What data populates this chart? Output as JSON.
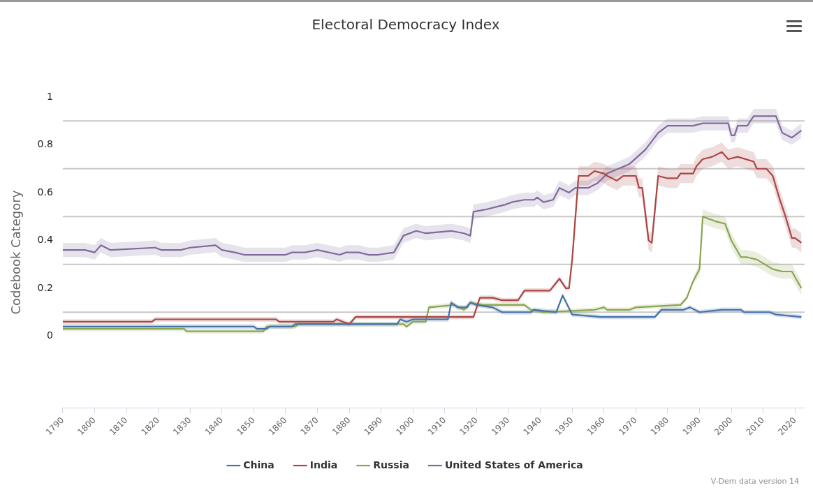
{
  "chart_data": {
    "type": "line",
    "title": "Electoral Democracy Index",
    "ylabel": "Codebook Category",
    "xlim": [
      1790,
      2023
    ],
    "xticks": [
      1790,
      1800,
      1810,
      1820,
      1830,
      1840,
      1850,
      1860,
      1870,
      1880,
      1890,
      1900,
      1910,
      1920,
      1930,
      1940,
      1950,
      1960,
      1970,
      1980,
      1990,
      2000,
      2010,
      2020
    ],
    "ylim": [
      -0.3,
      1
    ],
    "yticks": [
      0,
      0.2,
      0.4,
      0.6,
      0.8,
      1
    ],
    "grid": false,
    "legend": "bottom",
    "marker": "none",
    "line_style": "solid",
    "ref_lines": [
      {
        "axis": "y",
        "value": 0.1,
        "color": "#c8c8c8"
      },
      {
        "axis": "y",
        "value": 0.3,
        "color": "#c8c8c8"
      },
      {
        "axis": "y",
        "value": 0.5,
        "color": "#c8c8c8"
      },
      {
        "axis": "y",
        "value": 0.7,
        "color": "#c8c8c8"
      },
      {
        "axis": "y",
        "value": 0.9,
        "color": "#c8c8c8"
      }
    ],
    "annotations": [
      "V-Dem data version 14"
    ],
    "series": [
      {
        "name": "China",
        "color": "#4572a7",
        "x": [
          1790,
          1850,
          1851,
          1854,
          1855,
          1862,
          1863,
          1895,
          1896,
          1898,
          1900,
          1905,
          1911,
          1912,
          1914,
          1917,
          1918,
          1920,
          1925,
          1928,
          1937,
          1938,
          1945,
          1947,
          1950,
          1959,
          1970,
          1976,
          1978,
          1985,
          1987,
          1990,
          1997,
          2003,
          2004,
          2012,
          2014,
          2022
        ],
        "values": [
          0.04,
          0.04,
          0.03,
          0.03,
          0.04,
          0.04,
          0.05,
          0.05,
          0.07,
          0.06,
          0.07,
          0.07,
          0.07,
          0.14,
          0.12,
          0.12,
          0.14,
          0.13,
          0.12,
          0.1,
          0.1,
          0.11,
          0.1,
          0.17,
          0.09,
          0.08,
          0.08,
          0.08,
          0.11,
          0.11,
          0.12,
          0.1,
          0.11,
          0.11,
          0.1,
          0.1,
          0.09,
          0.08
        ],
        "lower": [
          0.03,
          0.03,
          0.02,
          0.02,
          0.03,
          0.03,
          0.04,
          0.04,
          0.06,
          0.05,
          0.06,
          0.06,
          0.06,
          0.13,
          0.11,
          0.11,
          0.13,
          0.12,
          0.11,
          0.09,
          0.09,
          0.1,
          0.09,
          0.16,
          0.08,
          0.07,
          0.07,
          0.07,
          0.1,
          0.1,
          0.11,
          0.09,
          0.1,
          0.1,
          0.09,
          0.09,
          0.08,
          0.07
        ],
        "upper": [
          0.05,
          0.05,
          0.04,
          0.04,
          0.05,
          0.05,
          0.06,
          0.06,
          0.08,
          0.07,
          0.08,
          0.08,
          0.08,
          0.15,
          0.13,
          0.13,
          0.15,
          0.14,
          0.13,
          0.11,
          0.11,
          0.12,
          0.11,
          0.18,
          0.1,
          0.09,
          0.09,
          0.09,
          0.12,
          0.12,
          0.13,
          0.11,
          0.12,
          0.12,
          0.11,
          0.11,
          0.1,
          0.09
        ]
      },
      {
        "name": "India",
        "color": "#aa4643",
        "x": [
          1790,
          1818,
          1819,
          1857,
          1858,
          1875,
          1876,
          1878,
          1880,
          1882,
          1919,
          1921,
          1925,
          1928,
          1933,
          1935,
          1943,
          1946,
          1948,
          1949,
          1950,
          1952,
          1955,
          1957,
          1960,
          1961,
          1964,
          1966,
          1970,
          1971,
          1972,
          1974,
          1975,
          1977,
          1980,
          1983,
          1984,
          1988,
          1989,
          1991,
          1994,
          1997,
          1999,
          2002,
          2007,
          2008,
          2011,
          2013,
          2015,
          2017,
          2019,
          2020,
          2022
        ],
        "values": [
          0.06,
          0.06,
          0.07,
          0.07,
          0.06,
          0.06,
          0.07,
          0.06,
          0.05,
          0.08,
          0.08,
          0.16,
          0.16,
          0.15,
          0.15,
          0.19,
          0.19,
          0.24,
          0.2,
          0.2,
          0.32,
          0.67,
          0.67,
          0.69,
          0.68,
          0.67,
          0.65,
          0.67,
          0.67,
          0.62,
          0.62,
          0.4,
          0.39,
          0.67,
          0.66,
          0.66,
          0.68,
          0.68,
          0.71,
          0.74,
          0.75,
          0.77,
          0.74,
          0.75,
          0.73,
          0.7,
          0.7,
          0.67,
          0.58,
          0.5,
          0.41,
          0.41,
          0.39
        ],
        "lower": [
          0.05,
          0.05,
          0.06,
          0.06,
          0.05,
          0.05,
          0.06,
          0.05,
          0.04,
          0.07,
          0.07,
          0.15,
          0.15,
          0.14,
          0.14,
          0.18,
          0.18,
          0.23,
          0.19,
          0.19,
          0.28,
          0.63,
          0.63,
          0.65,
          0.64,
          0.63,
          0.61,
          0.63,
          0.63,
          0.58,
          0.58,
          0.36,
          0.35,
          0.63,
          0.62,
          0.62,
          0.64,
          0.64,
          0.67,
          0.7,
          0.71,
          0.73,
          0.7,
          0.71,
          0.69,
          0.66,
          0.66,
          0.63,
          0.54,
          0.46,
          0.37,
          0.37,
          0.35
        ],
        "upper": [
          0.07,
          0.07,
          0.08,
          0.08,
          0.07,
          0.07,
          0.08,
          0.07,
          0.06,
          0.09,
          0.09,
          0.17,
          0.17,
          0.16,
          0.16,
          0.2,
          0.2,
          0.25,
          0.21,
          0.21,
          0.36,
          0.71,
          0.71,
          0.73,
          0.72,
          0.71,
          0.69,
          0.71,
          0.71,
          0.66,
          0.66,
          0.44,
          0.43,
          0.71,
          0.7,
          0.7,
          0.72,
          0.72,
          0.75,
          0.78,
          0.79,
          0.81,
          0.78,
          0.79,
          0.77,
          0.74,
          0.74,
          0.71,
          0.62,
          0.54,
          0.45,
          0.45,
          0.43
        ]
      },
      {
        "name": "Russia",
        "color": "#89a54e",
        "x": [
          1790,
          1828,
          1829,
          1853,
          1854,
          1863,
          1864,
          1897,
          1898,
          1900,
          1904,
          1905,
          1913,
          1916,
          1918,
          1922,
          1935,
          1937,
          1941,
          1957,
          1960,
          1961,
          1968,
          1970,
          1984,
          1986,
          1988,
          1990,
          1991,
          1993,
          1995,
          1998,
          2000,
          2003,
          2005,
          2008,
          2013,
          2016,
          2019,
          2022
        ],
        "values": [
          0.03,
          0.03,
          0.02,
          0.02,
          0.04,
          0.04,
          0.05,
          0.05,
          0.04,
          0.06,
          0.06,
          0.12,
          0.13,
          0.11,
          0.14,
          0.13,
          0.13,
          0.11,
          0.1,
          0.11,
          0.12,
          0.11,
          0.11,
          0.12,
          0.13,
          0.16,
          0.23,
          0.28,
          0.5,
          0.49,
          0.48,
          0.47,
          0.4,
          0.33,
          0.33,
          0.32,
          0.28,
          0.27,
          0.27,
          0.2
        ],
        "lower": [
          0.02,
          0.02,
          0.01,
          0.01,
          0.03,
          0.03,
          0.04,
          0.04,
          0.03,
          0.05,
          0.05,
          0.11,
          0.12,
          0.1,
          0.13,
          0.12,
          0.12,
          0.1,
          0.09,
          0.1,
          0.11,
          0.1,
          0.1,
          0.11,
          0.12,
          0.15,
          0.22,
          0.25,
          0.47,
          0.46,
          0.45,
          0.44,
          0.37,
          0.3,
          0.3,
          0.29,
          0.25,
          0.24,
          0.24,
          0.17
        ],
        "upper": [
          0.04,
          0.04,
          0.03,
          0.03,
          0.05,
          0.05,
          0.06,
          0.06,
          0.05,
          0.07,
          0.07,
          0.13,
          0.14,
          0.12,
          0.15,
          0.14,
          0.14,
          0.12,
          0.11,
          0.12,
          0.13,
          0.12,
          0.12,
          0.13,
          0.14,
          0.17,
          0.24,
          0.31,
          0.53,
          0.52,
          0.51,
          0.5,
          0.43,
          0.36,
          0.36,
          0.35,
          0.31,
          0.3,
          0.3,
          0.23
        ]
      },
      {
        "name": "United States of America",
        "color": "#80699b",
        "x": [
          1790,
          1792,
          1797,
          1800,
          1802,
          1805,
          1819,
          1821,
          1827,
          1830,
          1838,
          1840,
          1844,
          1847,
          1855,
          1860,
          1862,
          1866,
          1870,
          1877,
          1879,
          1883,
          1886,
          1889,
          1894,
          1897,
          1901,
          1904,
          1912,
          1916,
          1918,
          1919,
          1923,
          1929,
          1931,
          1935,
          1938,
          1939,
          1941,
          1944,
          1946,
          1949,
          1951,
          1955,
          1958,
          1961,
          1968,
          1973,
          1977,
          1980,
          1988,
          1991,
          1999,
          2000,
          2001,
          2002,
          2005,
          2007,
          2014,
          2016,
          2019,
          2022
        ],
        "values": [
          0.36,
          0.36,
          0.36,
          0.35,
          0.38,
          0.36,
          0.37,
          0.36,
          0.36,
          0.37,
          0.38,
          0.36,
          0.35,
          0.34,
          0.34,
          0.34,
          0.35,
          0.35,
          0.36,
          0.34,
          0.35,
          0.35,
          0.34,
          0.34,
          0.35,
          0.42,
          0.44,
          0.43,
          0.44,
          0.43,
          0.42,
          0.52,
          0.53,
          0.55,
          0.56,
          0.57,
          0.57,
          0.58,
          0.56,
          0.57,
          0.62,
          0.6,
          0.62,
          0.62,
          0.64,
          0.68,
          0.72,
          0.78,
          0.85,
          0.88,
          0.88,
          0.89,
          0.89,
          0.84,
          0.84,
          0.88,
          0.88,
          0.92,
          0.92,
          0.85,
          0.83,
          0.86
        ],
        "lower": [
          0.33,
          0.33,
          0.33,
          0.32,
          0.35,
          0.33,
          0.34,
          0.33,
          0.33,
          0.34,
          0.35,
          0.33,
          0.32,
          0.31,
          0.31,
          0.31,
          0.32,
          0.32,
          0.33,
          0.31,
          0.32,
          0.32,
          0.31,
          0.31,
          0.32,
          0.39,
          0.41,
          0.4,
          0.41,
          0.4,
          0.39,
          0.49,
          0.5,
          0.52,
          0.53,
          0.54,
          0.54,
          0.55,
          0.53,
          0.54,
          0.59,
          0.57,
          0.59,
          0.59,
          0.61,
          0.65,
          0.69,
          0.75,
          0.82,
          0.85,
          0.85,
          0.86,
          0.86,
          0.81,
          0.81,
          0.85,
          0.85,
          0.89,
          0.89,
          0.82,
          0.8,
          0.83
        ],
        "upper": [
          0.39,
          0.39,
          0.39,
          0.38,
          0.41,
          0.39,
          0.4,
          0.39,
          0.39,
          0.4,
          0.41,
          0.39,
          0.38,
          0.37,
          0.37,
          0.37,
          0.38,
          0.38,
          0.39,
          0.37,
          0.38,
          0.38,
          0.37,
          0.37,
          0.38,
          0.45,
          0.47,
          0.46,
          0.47,
          0.46,
          0.45,
          0.55,
          0.56,
          0.58,
          0.59,
          0.6,
          0.6,
          0.61,
          0.59,
          0.6,
          0.65,
          0.63,
          0.65,
          0.65,
          0.67,
          0.71,
          0.75,
          0.81,
          0.88,
          0.91,
          0.91,
          0.92,
          0.92,
          0.87,
          0.87,
          0.91,
          0.91,
          0.95,
          0.95,
          0.88,
          0.86,
          0.89
        ]
      }
    ]
  }
}
